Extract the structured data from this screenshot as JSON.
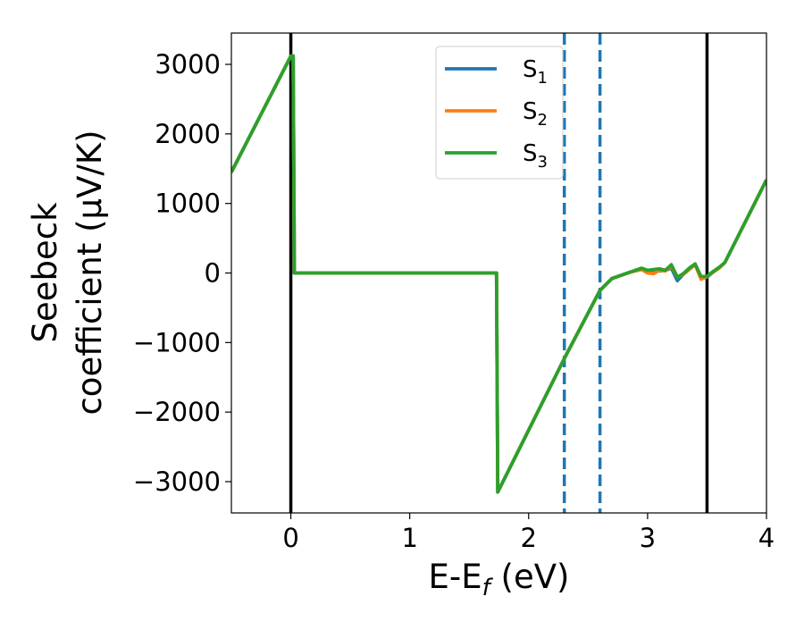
{
  "chart_data": {
    "type": "line",
    "title": "",
    "xlabel": {
      "main": "E-E",
      "sub": "f",
      "suffix": " (eV)"
    },
    "ylabel": {
      "line1": "Seebeck",
      "line2": "coefficient  (μV/K)"
    },
    "xlim": [
      -0.5,
      4.0
    ],
    "ylim": [
      -3450,
      3450
    ],
    "xticks": [
      0,
      1,
      2,
      3,
      4
    ],
    "xtick_labels": [
      "0",
      "1",
      "2",
      "3",
      "4"
    ],
    "yticks": [
      -3000,
      -2000,
      -1000,
      0,
      1000,
      2000,
      3000
    ],
    "ytick_labels": [
      "−3000",
      "−2000",
      "−1000",
      "0",
      "1000",
      "2000",
      "3000"
    ],
    "grid": false,
    "legend_position": "top-center",
    "series": [
      {
        "name": "S",
        "name_sub": "1",
        "color": "#1f77b4",
        "x": [
          -0.5,
          0.0,
          0.02,
          0.03,
          1.72,
          1.73,
          1.74,
          2.3,
          2.6,
          2.7,
          2.85,
          2.95,
          3.0,
          3.05,
          3.1,
          3.15,
          3.2,
          3.25,
          3.3,
          3.35,
          3.4,
          3.45,
          3.5,
          3.55,
          3.6,
          3.65,
          4.0
        ],
        "y": [
          1450,
          3120,
          3120,
          0,
          0,
          0,
          -3150,
          -1230,
          -250,
          -80,
          10,
          60,
          30,
          40,
          30,
          40,
          70,
          -110,
          -20,
          60,
          130,
          -80,
          -60,
          10,
          70,
          150,
          1340
        ]
      },
      {
        "name": "S",
        "name_sub": "2",
        "color": "#ff7f0e",
        "x": [
          -0.5,
          0.0,
          0.02,
          0.03,
          1.72,
          1.73,
          1.74,
          2.3,
          2.6,
          2.7,
          2.85,
          2.95,
          3.0,
          3.05,
          3.1,
          3.15,
          3.2,
          3.25,
          3.3,
          3.35,
          3.4,
          3.45,
          3.5,
          3.55,
          3.6,
          3.65,
          4.0
        ],
        "y": [
          1450,
          3120,
          3120,
          0,
          0,
          0,
          -3150,
          -1230,
          -250,
          -80,
          10,
          50,
          0,
          -10,
          40,
          30,
          100,
          -60,
          -20,
          50,
          120,
          -90,
          -50,
          10,
          70,
          150,
          1340
        ]
      },
      {
        "name": "S",
        "name_sub": "3",
        "color": "#2ca02c",
        "x": [
          -0.5,
          0.0,
          0.02,
          0.03,
          1.72,
          1.73,
          1.74,
          2.3,
          2.6,
          2.7,
          2.85,
          2.95,
          3.0,
          3.05,
          3.1,
          3.15,
          3.2,
          3.25,
          3.3,
          3.35,
          3.4,
          3.45,
          3.5,
          3.55,
          3.6,
          3.65,
          4.0
        ],
        "y": [
          1450,
          3120,
          3120,
          0,
          0,
          0,
          -3150,
          -1230,
          -250,
          -80,
          10,
          70,
          40,
          50,
          60,
          40,
          120,
          -60,
          -10,
          70,
          130,
          -50,
          -50,
          20,
          80,
          150,
          1340
        ]
      }
    ],
    "vertical_lines": [
      {
        "x": 0.0,
        "style": "solid",
        "color": "#000000"
      },
      {
        "x": 3.5,
        "style": "solid",
        "color": "#000000"
      },
      {
        "x": 2.3,
        "style": "dashed",
        "color": "#1f77b4"
      },
      {
        "x": 2.6,
        "style": "dashed",
        "color": "#1f77b4"
      }
    ]
  }
}
